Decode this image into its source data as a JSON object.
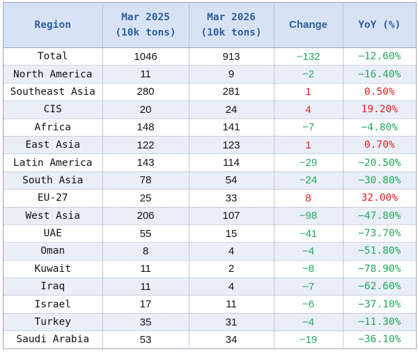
{
  "header": {
    "region": "Region",
    "mar2025": [
      "Mar 2025",
      "(10k tons)"
    ],
    "mar2026": [
      "Mar 2026",
      "(10k tons)"
    ],
    "change": "Change",
    "yoy": "YoY (%)"
  },
  "colors": {
    "header_bg": "#d7e3f4",
    "header_text": "#2f5f9c",
    "stripe": "#e9eef8",
    "negative": "#27a85a",
    "positive": "#e01e1e"
  },
  "rows": [
    {
      "region": "Total",
      "mar2025": "1046",
      "mar2026": "913",
      "change": "−132",
      "yoy": "−12.60%",
      "trend": "neg"
    },
    {
      "region": "North America",
      "mar2025": "11",
      "mar2026": "9",
      "change": "−2",
      "yoy": "−16.40%",
      "trend": "neg"
    },
    {
      "region": "Southeast Asia",
      "mar2025": "280",
      "mar2026": "281",
      "change": "1",
      "yoy": "0.50%",
      "trend": "pos"
    },
    {
      "region": "CIS",
      "mar2025": "20",
      "mar2026": "24",
      "change": "4",
      "yoy": "19.20%",
      "trend": "pos"
    },
    {
      "region": "Africa",
      "mar2025": "148",
      "mar2026": "141",
      "change": "−7",
      "yoy": "−4.80%",
      "trend": "neg"
    },
    {
      "region": "East Asia",
      "mar2025": "122",
      "mar2026": "123",
      "change": "1",
      "yoy": "0.70%",
      "trend": "pos"
    },
    {
      "region": "Latin America",
      "mar2025": "143",
      "mar2026": "114",
      "change": "−29",
      "yoy": "−20.50%",
      "trend": "neg"
    },
    {
      "region": "South Asia",
      "mar2025": "78",
      "mar2026": "54",
      "change": "−24",
      "yoy": "−30.80%",
      "trend": "neg"
    },
    {
      "region": "EU-27",
      "mar2025": "25",
      "mar2026": "33",
      "change": "8",
      "yoy": "32.00%",
      "trend": "pos"
    },
    {
      "region": "West Asia",
      "mar2025": "206",
      "mar2026": "107",
      "change": "−98",
      "yoy": "−47.80%",
      "trend": "neg"
    },
    {
      "region": "UAE",
      "mar2025": "55",
      "mar2026": "15",
      "change": "−41",
      "yoy": "−73.70%",
      "trend": "neg"
    },
    {
      "region": "Oman",
      "mar2025": "8",
      "mar2026": "4",
      "change": "−4",
      "yoy": "−51.80%",
      "trend": "neg"
    },
    {
      "region": "Kuwait",
      "mar2025": "11",
      "mar2026": "2",
      "change": "−8",
      "yoy": "−78.90%",
      "trend": "neg"
    },
    {
      "region": "Iraq",
      "mar2025": "11",
      "mar2026": "4",
      "change": "−7",
      "yoy": "−62.60%",
      "trend": "neg"
    },
    {
      "region": "Israel",
      "mar2025": "17",
      "mar2026": "11",
      "change": "−6",
      "yoy": "−37.10%",
      "trend": "neg"
    },
    {
      "region": "Turkey",
      "mar2025": "35",
      "mar2026": "31",
      "change": "−4",
      "yoy": "−11.30%",
      "trend": "neg"
    },
    {
      "region": "Saudi Arabia",
      "mar2025": "53",
      "mar2026": "34",
      "change": "−19",
      "yoy": "−36.10%",
      "trend": "neg"
    }
  ]
}
